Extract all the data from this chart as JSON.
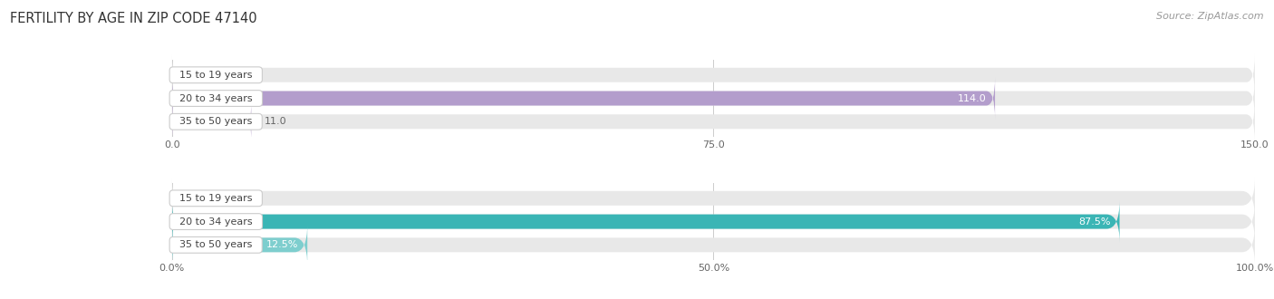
{
  "title": "FERTILITY BY AGE IN ZIP CODE 47140",
  "source": "Source: ZipAtlas.com",
  "top_chart": {
    "categories": [
      "15 to 19 years",
      "20 to 34 years",
      "35 to 50 years"
    ],
    "values": [
      0.0,
      114.0,
      11.0
    ],
    "xlim": [
      0,
      150
    ],
    "xticks": [
      0.0,
      75.0,
      150.0
    ],
    "xtick_labels": [
      "0.0",
      "75.0",
      "150.0"
    ],
    "bar_colors": [
      "#c9b8d8",
      "#b39dcc",
      "#c9b8d8"
    ],
    "value_label_suffix": ""
  },
  "bottom_chart": {
    "categories": [
      "15 to 19 years",
      "20 to 34 years",
      "35 to 50 years"
    ],
    "values": [
      0.0,
      87.5,
      12.5
    ],
    "xlim": [
      0,
      100
    ],
    "xticks": [
      0.0,
      50.0,
      100.0
    ],
    "xtick_labels": [
      "0.0%",
      "50.0%",
      "100.0%"
    ],
    "bar_colors": [
      "#7ecece",
      "#3ab5b5",
      "#7ecece"
    ],
    "value_label_suffix": "%"
  },
  "bg_bar_color": "#e8e8e8",
  "fig_bg": "#ffffff",
  "label_box_bg": "#ffffff",
  "label_box_text": "#444444",
  "title_color": "#333333",
  "source_color": "#999999",
  "grid_color": "#cccccc",
  "value_color_inside": "#ffffff",
  "value_color_outside": "#666666",
  "bar_height": 0.62,
  "rounding_size": 1.2
}
